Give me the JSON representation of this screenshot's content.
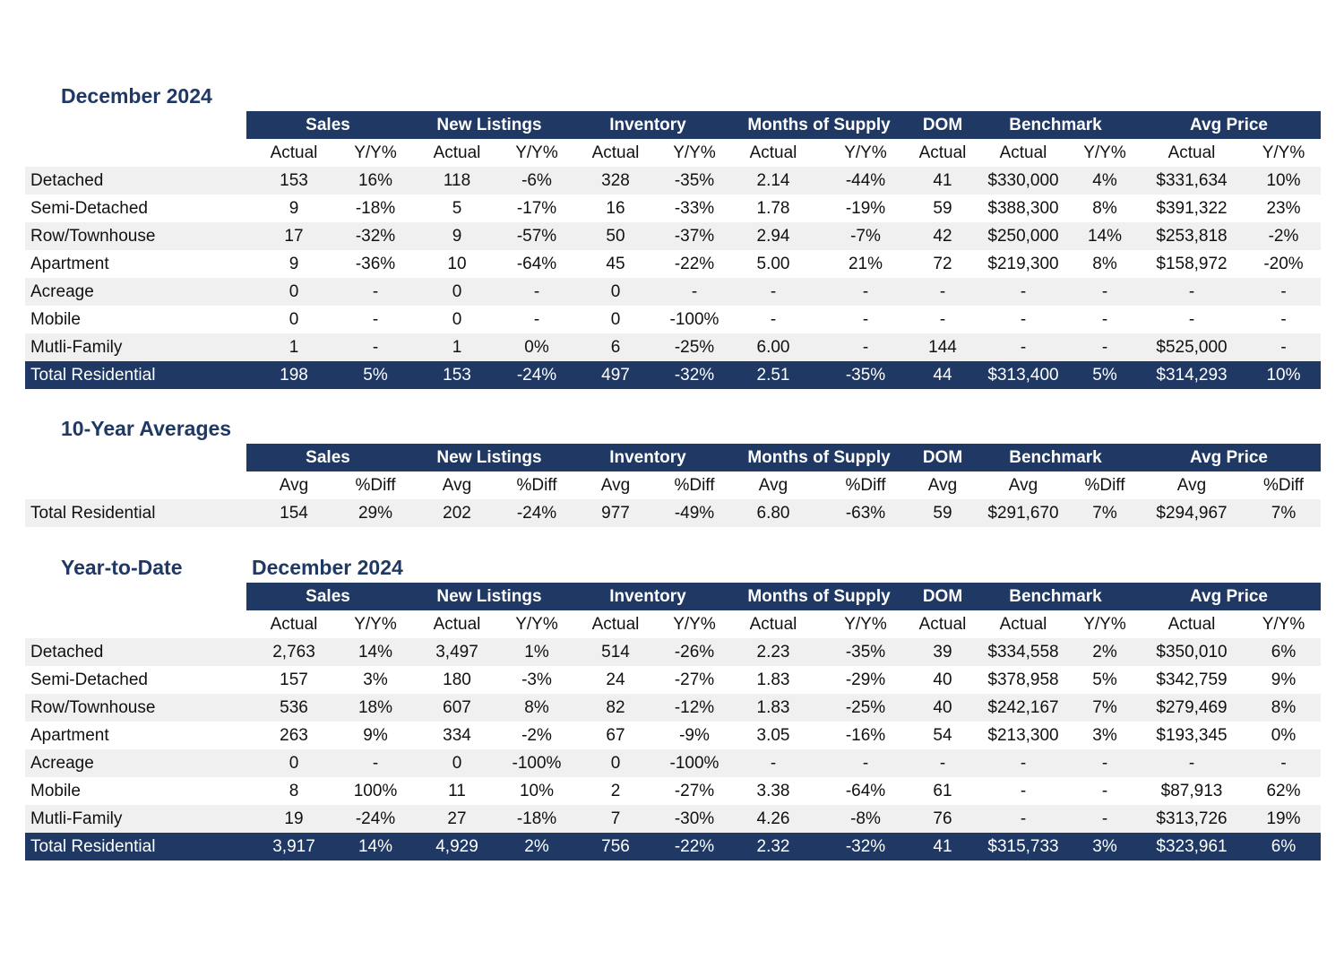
{
  "monthly": {
    "title": "December 2024",
    "groups": [
      "Sales",
      "New Listings",
      "Inventory",
      "Months of Supply",
      "DOM",
      "Benchmark",
      "Avg Price"
    ],
    "subheaders": [
      "Actual",
      "Y/Y%",
      "Actual",
      "Y/Y%",
      "Actual",
      "Y/Y%",
      "Actual",
      "Y/Y%",
      "Actual",
      "Actual",
      "Y/Y%",
      "Actual",
      "Y/Y%"
    ],
    "rows": [
      {
        "label": "Detached",
        "values": [
          "153",
          "16%",
          "118",
          "-6%",
          "328",
          "-35%",
          "2.14",
          "-44%",
          "41",
          "$330,000",
          "4%",
          "$331,634",
          "10%"
        ]
      },
      {
        "label": "Semi-Detached",
        "values": [
          "9",
          "-18%",
          "5",
          "-17%",
          "16",
          "-33%",
          "1.78",
          "-19%",
          "59",
          "$388,300",
          "8%",
          "$391,322",
          "23%"
        ]
      },
      {
        "label": "Row/Townhouse",
        "values": [
          "17",
          "-32%",
          "9",
          "-57%",
          "50",
          "-37%",
          "2.94",
          "-7%",
          "42",
          "$250,000",
          "14%",
          "$253,818",
          "-2%"
        ]
      },
      {
        "label": "Apartment",
        "values": [
          "9",
          "-36%",
          "10",
          "-64%",
          "45",
          "-22%",
          "5.00",
          "21%",
          "72",
          "$219,300",
          "8%",
          "$158,972",
          "-20%"
        ]
      },
      {
        "label": "Acreage",
        "values": [
          "0",
          "-",
          "0",
          "-",
          "0",
          "-",
          "-",
          "-",
          "-",
          "-",
          "-",
          "-",
          "-"
        ]
      },
      {
        "label": "Mobile",
        "values": [
          "0",
          "-",
          "0",
          "-",
          "0",
          "-100%",
          "-",
          "-",
          "-",
          "-",
          "-",
          "-",
          "-"
        ]
      },
      {
        "label": "Mutli-Family",
        "values": [
          "1",
          "-",
          "1",
          "0%",
          "6",
          "-25%",
          "6.00",
          "-",
          "144",
          "-",
          "-",
          "$525,000",
          "-"
        ]
      }
    ],
    "total": {
      "label": "Total Residential",
      "values": [
        "198",
        "5%",
        "153",
        "-24%",
        "497",
        "-32%",
        "2.51",
        "-35%",
        "44",
        "$313,400",
        "5%",
        "$314,293",
        "10%"
      ]
    }
  },
  "averages": {
    "title": "10-Year Averages",
    "groups": [
      "Sales",
      "New Listings",
      "Inventory",
      "Months of Supply",
      "DOM",
      "Benchmark",
      "Avg Price"
    ],
    "subheaders": [
      "Avg",
      "%Diff",
      "Avg",
      "%Diff",
      "Avg",
      "%Diff",
      "Avg",
      "%Diff",
      "Avg",
      "Avg",
      "%Diff",
      "Avg",
      "%Diff"
    ],
    "rows": [
      {
        "label": "Total Residential",
        "values": [
          "154",
          "29%",
          "202",
          "-24%",
          "977",
          "-49%",
          "6.80",
          "-63%",
          "59",
          "$291,670",
          "7%",
          "$294,967",
          "7%"
        ]
      }
    ]
  },
  "ytd": {
    "title": "Year-to-Date",
    "period": "December 2024",
    "groups": [
      "Sales",
      "New Listings",
      "Inventory",
      "Months of Supply",
      "DOM",
      "Benchmark",
      "Avg Price"
    ],
    "subheaders": [
      "Actual",
      "Y/Y%",
      "Actual",
      "Y/Y%",
      "Actual",
      "Y/Y%",
      "Actual",
      "Y/Y%",
      "Actual",
      "Actual",
      "Y/Y%",
      "Actual",
      "Y/Y%"
    ],
    "rows": [
      {
        "label": "Detached",
        "values": [
          "2,763",
          "14%",
          "3,497",
          "1%",
          "514",
          "-26%",
          "2.23",
          "-35%",
          "39",
          "$334,558",
          "2%",
          "$350,010",
          "6%"
        ]
      },
      {
        "label": "Semi-Detached",
        "values": [
          "157",
          "3%",
          "180",
          "-3%",
          "24",
          "-27%",
          "1.83",
          "-29%",
          "40",
          "$378,958",
          "5%",
          "$342,759",
          "9%"
        ]
      },
      {
        "label": "Row/Townhouse",
        "values": [
          "536",
          "18%",
          "607",
          "8%",
          "82",
          "-12%",
          "1.83",
          "-25%",
          "40",
          "$242,167",
          "7%",
          "$279,469",
          "8%"
        ]
      },
      {
        "label": "Apartment",
        "values": [
          "263",
          "9%",
          "334",
          "-2%",
          "67",
          "-9%",
          "3.05",
          "-16%",
          "54",
          "$213,300",
          "3%",
          "$193,345",
          "0%"
        ]
      },
      {
        "label": "Acreage",
        "values": [
          "0",
          "-",
          "0",
          "-100%",
          "0",
          "-100%",
          "-",
          "-",
          "-",
          "-",
          "-",
          "-",
          "-"
        ]
      },
      {
        "label": "Mobile",
        "values": [
          "8",
          "100%",
          "11",
          "10%",
          "2",
          "-27%",
          "3.38",
          "-64%",
          "61",
          "-",
          "-",
          "$87,913",
          "62%"
        ]
      },
      {
        "label": "Mutli-Family",
        "values": [
          "19",
          "-24%",
          "27",
          "-18%",
          "7",
          "-30%",
          "4.26",
          "-8%",
          "76",
          "-",
          "-",
          "$313,726",
          "19%"
        ]
      }
    ],
    "total": {
      "label": "Total Residential",
      "values": [
        "3,917",
        "14%",
        "4,929",
        "2%",
        "756",
        "-22%",
        "2.32",
        "-32%",
        "41",
        "$315,733",
        "3%",
        "$323,961",
        "6%"
      ]
    }
  }
}
